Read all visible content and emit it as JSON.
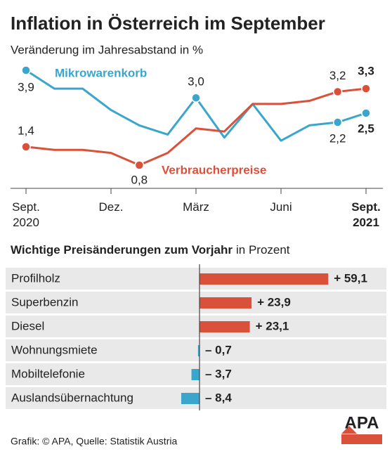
{
  "chart_data": [
    {
      "type": "line",
      "title": "Inflation in Österreich im September",
      "subtitle": "Veränderung im Jahresabstand in %",
      "categories": [
        "Sept. 2020",
        null,
        null,
        "Dez.",
        null,
        null,
        "März",
        null,
        null,
        "Juni",
        null,
        null,
        "Sept. 2021"
      ],
      "series": [
        {
          "name": "Mikrowarenkorb",
          "color": "#3aa6cd",
          "values": [
            3.9,
            3.3,
            3.3,
            2.6,
            2.1,
            1.8,
            3.0,
            1.7,
            2.8,
            1.6,
            2.1,
            2.2,
            2.5
          ],
          "value_labels": [
            "3,9",
            null,
            null,
            null,
            null,
            null,
            "3,0",
            null,
            null,
            null,
            null,
            "2,2",
            "2,5"
          ]
        },
        {
          "name": "Verbraucherpreise",
          "color": "#d9513a",
          "values": [
            1.4,
            1.3,
            1.3,
            1.2,
            0.8,
            1.2,
            2.0,
            1.9,
            2.8,
            2.8,
            2.9,
            3.2,
            3.3
          ],
          "value_labels": [
            "1,4",
            null,
            null,
            null,
            "0,8",
            null,
            null,
            null,
            null,
            null,
            null,
            "3,2",
            "3,3"
          ]
        }
      ]
    },
    {
      "type": "hbar",
      "title": "Wichtige Preisänderungen zum Vorjahr",
      "unit": "in Prozent",
      "categories": [
        "Profilholz",
        "Superbenzin",
        "Diesel",
        "Wohnungsmiete",
        "Mobiltelefonie",
        "Auslandsübernachtung"
      ],
      "values": [
        59.1,
        23.9,
        23.1,
        -0.7,
        -3.7,
        -8.4
      ],
      "value_labels": [
        "+ 59,1",
        "+ 23,9",
        "+ 23,1",
        "– 0,7",
        "– 3,7",
        "– 8,4"
      ],
      "positive_color": "#d9513a",
      "negative_color": "#3aa6cd"
    }
  ],
  "source": "Grafik: © APA, Quelle: Statistik Austria",
  "logo": "APA"
}
